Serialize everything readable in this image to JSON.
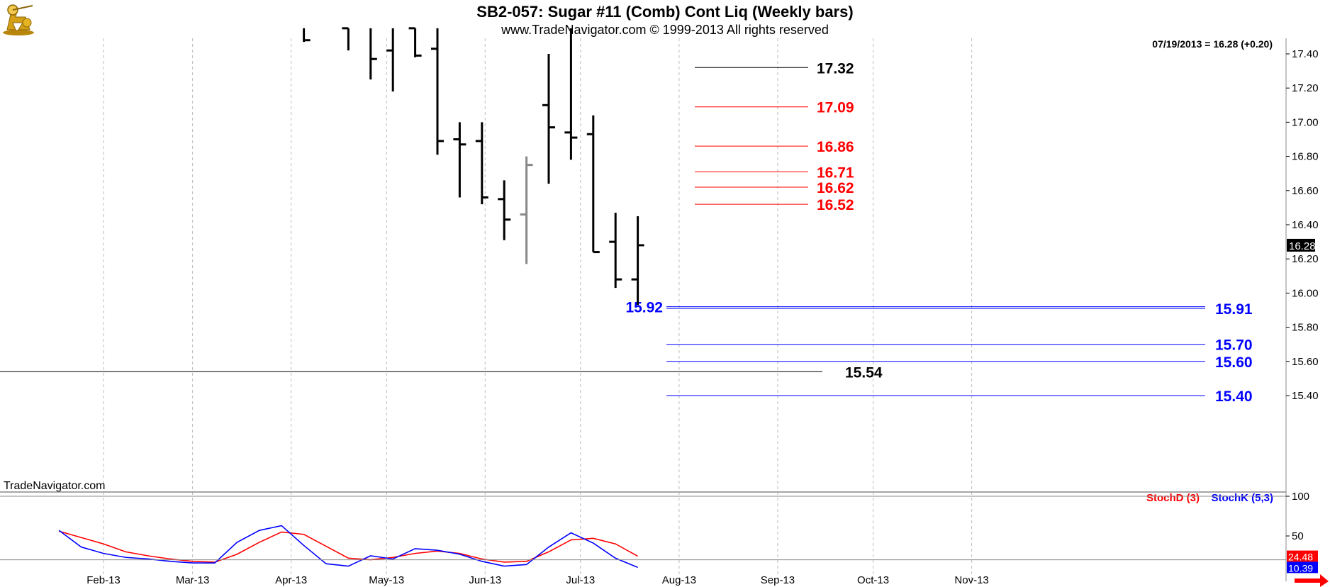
{
  "header": {
    "title": "SB2-057:  Sugar #11 (Comb) Cont Liq  (Weekly bars)",
    "subtitle": "www.TradeNavigator.com © 1999-2013 All rights reserved"
  },
  "info_label": "07/19/2013 = 16.28 (+0.20)",
  "watermark": "TradeNavigator.com",
  "last_price_tag": "16.28",
  "chart_data": [
    {
      "type": "ohlc",
      "title": "SB2-057:  Sugar #11 (Comb) Cont Liq  (Weekly bars)",
      "x_tick_labels": [
        "Feb-13",
        "Mar-13",
        "Apr-13",
        "May-13",
        "Jun-13",
        "Jul-13",
        "Aug-13",
        "Sep-13",
        "Oct-13",
        "Nov-13"
      ],
      "y_tick_labels": [
        "17.40",
        "17.20",
        "17.00",
        "16.80",
        "16.60",
        "16.40",
        "16.20",
        "16.00",
        "15.80",
        "15.60",
        "15.40"
      ],
      "ylim": [
        15.32,
        17.53
      ],
      "bars": [
        {
          "date": "2013-04-05",
          "open": null,
          "high": 17.55,
          "low": 17.47,
          "close": 17.48
        },
        {
          "date": "2013-04-19",
          "open": 17.55,
          "high": 17.55,
          "low": 17.42,
          "close": null
        },
        {
          "date": "2013-04-26",
          "open": null,
          "high": 17.55,
          "low": 17.25,
          "close": 17.37
        },
        {
          "date": "2013-05-03",
          "open": 17.42,
          "high": 17.55,
          "low": 17.18,
          "close": null
        },
        {
          "date": "2013-05-10",
          "open": 17.55,
          "high": 17.55,
          "low": 17.38,
          "close": 17.39
        },
        {
          "date": "2013-05-17",
          "open": 17.43,
          "high": 17.55,
          "low": 16.81,
          "close": 16.89
        },
        {
          "date": "2013-05-24",
          "open": 16.9,
          "high": 17.0,
          "low": 16.56,
          "close": 16.87
        },
        {
          "date": "2013-05-31",
          "open": 16.89,
          "high": 17.0,
          "low": 16.52,
          "close": 16.56
        },
        {
          "date": "2013-06-07",
          "open": 16.55,
          "high": 16.66,
          "low": 16.31,
          "close": 16.43
        },
        {
          "date": "2013-06-14",
          "open": 16.46,
          "high": 16.8,
          "low": 16.17,
          "close": 16.75,
          "color": "#888888"
        },
        {
          "date": "2013-06-21",
          "open": 17.1,
          "high": 17.4,
          "low": 16.64,
          "close": 16.97
        },
        {
          "date": "2013-06-28",
          "open": 16.94,
          "high": 17.55,
          "low": 16.78,
          "close": 16.91
        },
        {
          "date": "2013-07-05",
          "open": 16.93,
          "high": 17.04,
          "low": 16.24,
          "close": 16.24
        },
        {
          "date": "2013-07-12",
          "open": 16.3,
          "high": 16.47,
          "low": 16.03,
          "close": 16.08
        },
        {
          "date": "2013-07-19",
          "open": 16.08,
          "high": 16.45,
          "low": 15.93,
          "close": 16.28
        }
      ],
      "levels": [
        {
          "value": 17.32,
          "label": "17.32",
          "color": "#000000"
        },
        {
          "value": 17.09,
          "label": "17.09",
          "color": "#ff0000"
        },
        {
          "value": 16.86,
          "label": "16.86",
          "color": "#ff0000"
        },
        {
          "value": 16.71,
          "label": "16.71",
          "color": "#ff0000"
        },
        {
          "value": 16.62,
          "label": "16.62",
          "color": "#ff0000"
        },
        {
          "value": 16.52,
          "label": "16.52",
          "color": "#ff0000"
        },
        {
          "value": 15.92,
          "label": "15.92",
          "color": "#0000ff"
        },
        {
          "value": 15.91,
          "label": "15.91",
          "color": "#0000ff"
        },
        {
          "value": 15.7,
          "label": "15.70",
          "color": "#0000ff"
        },
        {
          "value": 15.6,
          "label": "15.60",
          "color": "#0000ff"
        },
        {
          "value": 15.54,
          "label": "15.54",
          "color": "#000000"
        },
        {
          "value": 15.4,
          "label": "15.40",
          "color": "#0000ff"
        }
      ],
      "last": {
        "date": "07/19/2013",
        "value": 16.28,
        "change": 0.2
      }
    },
    {
      "type": "line",
      "title": "",
      "ylim": [
        0,
        100
      ],
      "y_tick_labels": [
        "100",
        "50"
      ],
      "x": [
        "2013-01-18",
        "2013-01-25",
        "2013-02-01",
        "2013-02-08",
        "2013-02-15",
        "2013-02-22",
        "2013-03-01",
        "2013-03-08",
        "2013-03-15",
        "2013-03-22",
        "2013-03-29",
        "2013-04-05",
        "2013-04-12",
        "2013-04-19",
        "2013-04-26",
        "2013-05-03",
        "2013-05-10",
        "2013-05-17",
        "2013-05-24",
        "2013-05-31",
        "2013-06-07",
        "2013-06-14",
        "2013-06-21",
        "2013-06-28",
        "2013-07-05",
        "2013-07-12",
        "2013-07-19"
      ],
      "series": [
        {
          "name": "StochD (3)",
          "color": "#ff0000",
          "values": [
            56,
            48,
            40,
            30,
            25,
            21,
            18,
            17,
            27,
            42,
            55,
            52,
            37,
            22,
            20,
            23,
            28,
            31,
            28,
            21,
            17,
            18,
            30,
            45,
            47,
            40,
            24.48
          ]
        },
        {
          "name": "StochK (5,3)",
          "color": "#0000ff",
          "values": [
            57,
            36,
            28,
            23,
            21,
            18,
            16,
            16,
            42,
            57,
            63,
            38,
            15,
            12,
            25,
            21,
            34,
            32,
            27,
            18,
            12,
            14,
            36,
            54,
            41,
            22,
            10.39
          ]
        }
      ],
      "last_values": {
        "stochd": "24.48",
        "stochk": "10.39"
      }
    }
  ]
}
